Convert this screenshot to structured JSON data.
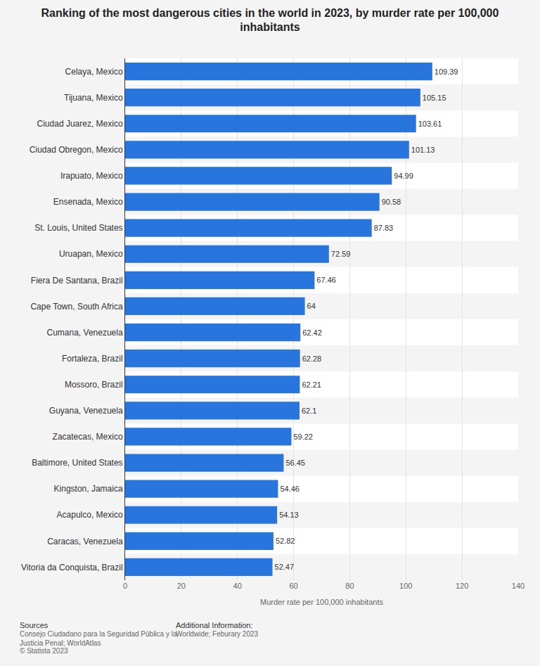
{
  "chart_data": {
    "type": "bar",
    "orientation": "horizontal",
    "title": "Ranking of the most dangerous cities in the world in 2023, by murder rate per 100,000 inhabitants",
    "x_label": "Murder rate per 100,000 inhabitants",
    "categories": [
      "Celaya, Mexico",
      "Tijuana, Mexico",
      "Ciudad Juarez, Mexico",
      "Ciudad Obregon, Mexico",
      "Irapuato, Mexico",
      "Ensenada, Mexico",
      "St. Louis, United States",
      "Uruapan, Mexico",
      "Fiera De Santana, Brazil",
      "Cape Town, South Africa",
      "Cumana, Venezuela",
      "Fortaleza, Brazil",
      "Mossoro, Brazil",
      "Guyana, Venezuela",
      "Zacatecas, Mexico",
      "Baltimore, United States",
      "Kingston, Jamaica",
      "Acapulco, Mexico",
      "Caracas, Venezuela",
      "Vitoria da Conquista, Brazil"
    ],
    "values": [
      109.39,
      105.15,
      103.61,
      101.13,
      94.99,
      90.58,
      87.83,
      72.59,
      67.46,
      64,
      62.42,
      62.28,
      62.21,
      62.1,
      59.22,
      56.45,
      54.46,
      54.13,
      52.82,
      52.47
    ],
    "color": "#2876dd",
    "xlim": [
      0,
      140
    ],
    "xticks": [
      0,
      20,
      40,
      60,
      80,
      100,
      120,
      140
    ],
    "grid": true,
    "data_labels": true,
    "annotations": [
      "Sources",
      "Consejo Ciudadano para la Seguridad Pública y la Justicia Penal; WorldAtlas",
      "© Statista 2023",
      "Additional Information:",
      "Worldwide; Feburary 2023"
    ]
  }
}
